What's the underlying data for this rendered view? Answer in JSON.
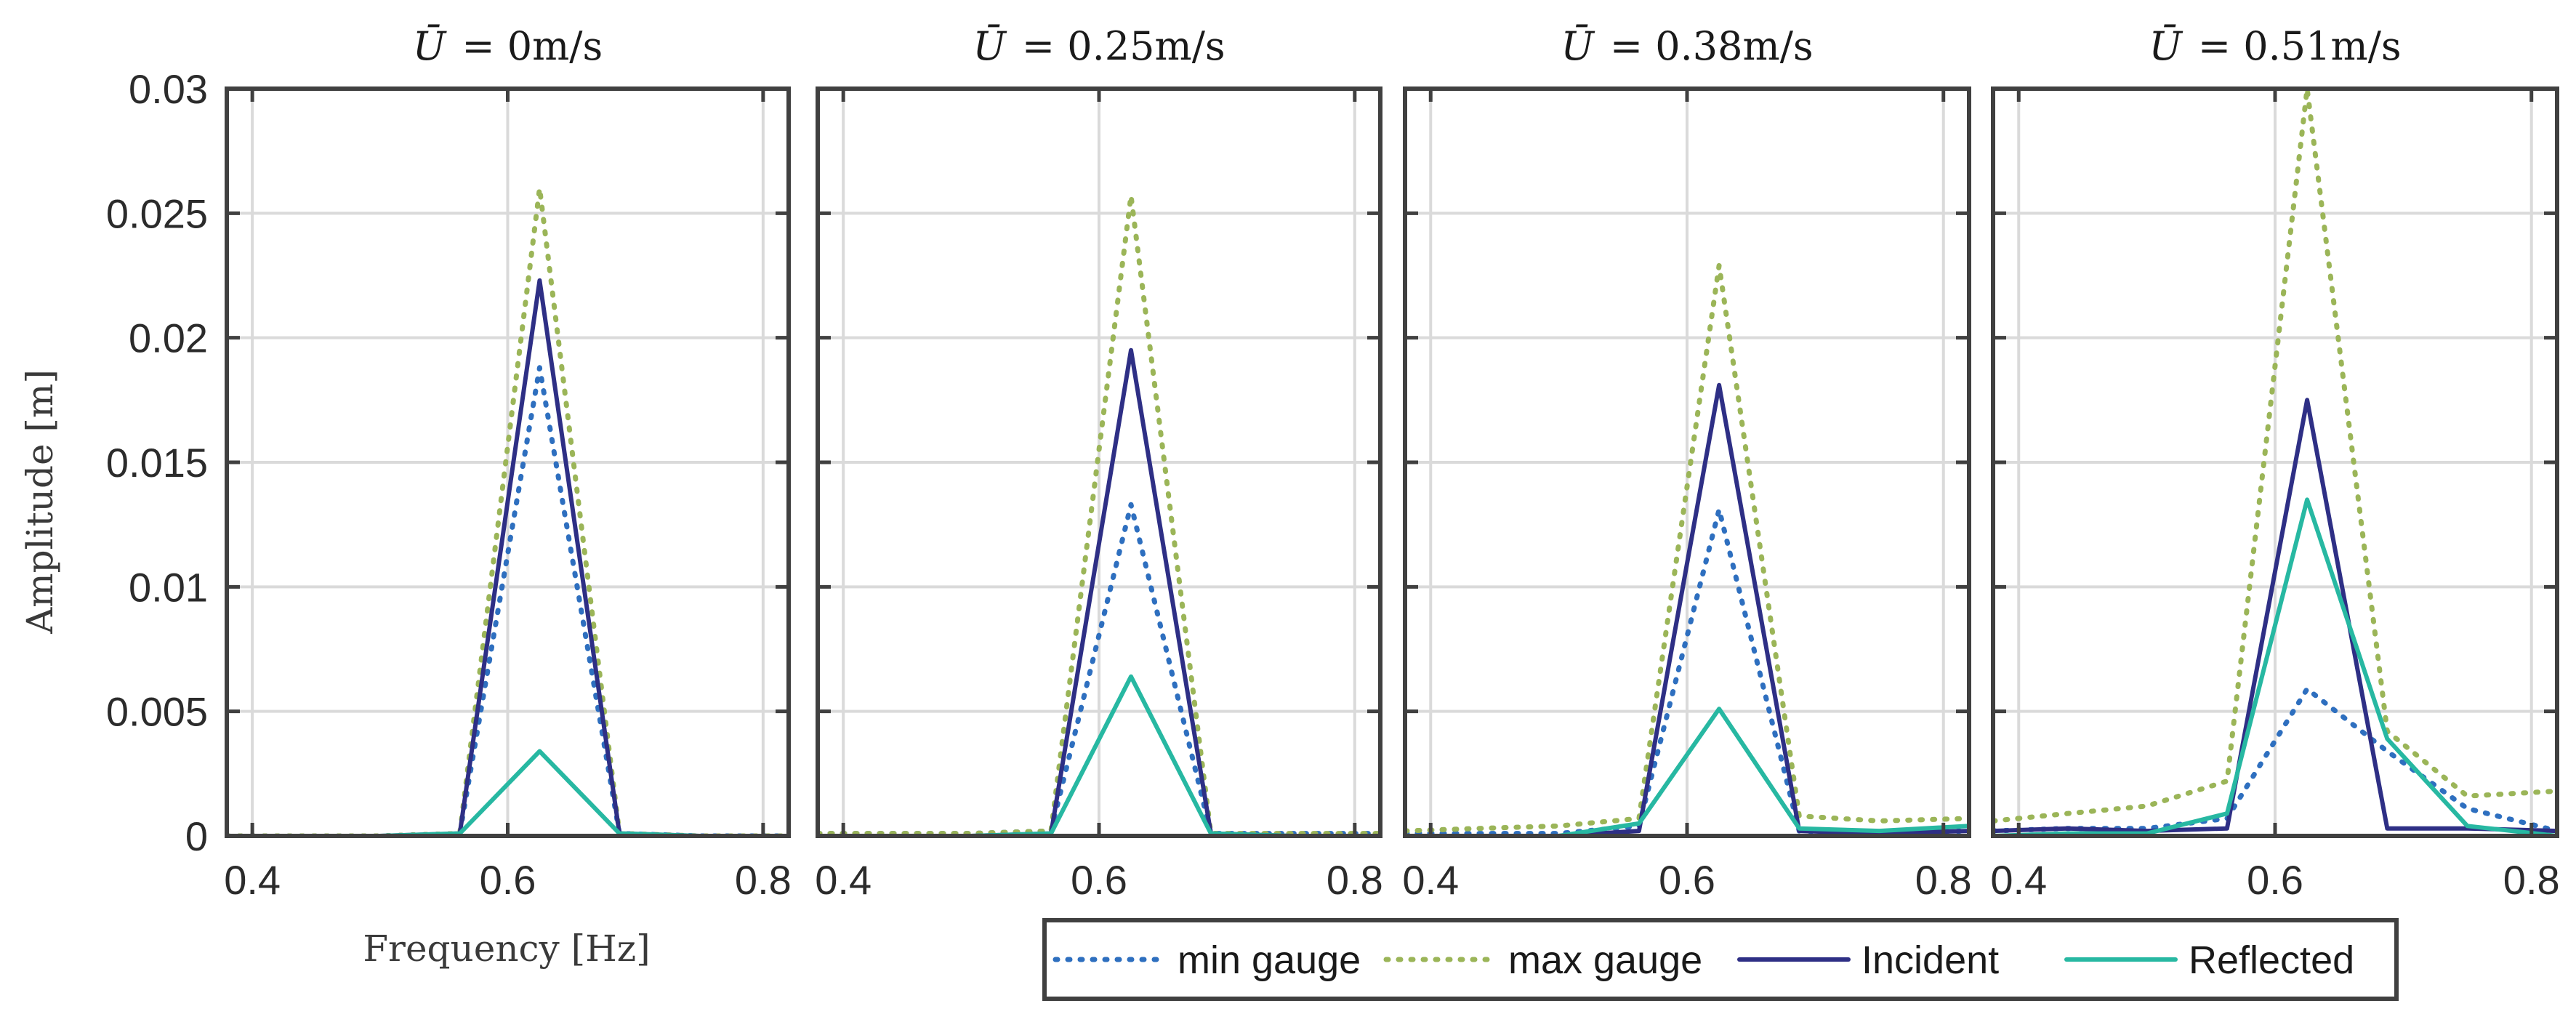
{
  "chart_data": {
    "type": "line",
    "xlabel": "Frequency [Hz]",
    "ylabel": "Amplitude [m]",
    "xlim": [
      0.38,
      0.82
    ],
    "ylim": [
      0,
      0.03
    ],
    "xticks": [
      0.4,
      0.6,
      0.8
    ],
    "xtick_labels": [
      "0.4",
      "0.6",
      "0.8"
    ],
    "yticks": [
      0,
      0.005,
      0.01,
      0.015,
      0.02,
      0.025,
      0.03
    ],
    "ytick_labels": [
      "0",
      "0.005",
      "0.01",
      "0.015",
      "0.02",
      "0.025",
      "0.03"
    ],
    "grid": true,
    "legend_position": "bottom-center",
    "series_styles": [
      {
        "name": "min gauge",
        "color": "#2e6fbf",
        "style": "dotted"
      },
      {
        "name": "max gauge",
        "color": "#9bb558",
        "style": "dotted"
      },
      {
        "name": "Incident",
        "color": "#2e2f85",
        "style": "solid"
      },
      {
        "name": "Reflected",
        "color": "#27b8a2",
        "style": "solid"
      }
    ],
    "panels": [
      {
        "title_var": "Ū",
        "title_value": "= 0m/s",
        "x": [
          0.38,
          0.438,
          0.5,
          0.5625,
          0.625,
          0.6875,
          0.75,
          0.82
        ],
        "series": [
          {
            "name": "min gauge",
            "values": [
              0,
              0,
              0,
              0.0001,
              0.0188,
              0.0001,
              0,
              0
            ]
          },
          {
            "name": "max gauge",
            "values": [
              0,
              0,
              0,
              0.0001,
              0.026,
              0.0001,
              0,
              0
            ]
          },
          {
            "name": "Incident",
            "values": [
              0,
              0,
              0,
              0.0001,
              0.0223,
              0.0001,
              0,
              0
            ]
          },
          {
            "name": "Reflected",
            "values": [
              0,
              0,
              0,
              0.0001,
              0.0034,
              0.0001,
              0,
              0
            ]
          }
        ]
      },
      {
        "title_var": "Ū",
        "title_value": "= 0.25m/s",
        "x": [
          0.38,
          0.438,
          0.5,
          0.5625,
          0.625,
          0.6875,
          0.75,
          0.82
        ],
        "series": [
          {
            "name": "min gauge",
            "values": [
              0.0001,
              0.0001,
              0.0001,
              0.0002,
              0.0133,
              0.0001,
              0.0001,
              0.0001
            ]
          },
          {
            "name": "max gauge",
            "values": [
              0.0001,
              0.0001,
              0.0001,
              0.0002,
              0.0257,
              0.0001,
              0.0001,
              0.0001
            ]
          },
          {
            "name": "Incident",
            "values": [
              0,
              0,
              0,
              0.0001,
              0.0195,
              0.0001,
              0,
              0
            ]
          },
          {
            "name": "Reflected",
            "values": [
              0,
              0,
              0,
              0.0001,
              0.0064,
              0.0001,
              0,
              0
            ]
          }
        ]
      },
      {
        "title_var": "Ū",
        "title_value": "= 0.38m/s",
        "x": [
          0.38,
          0.438,
          0.5,
          0.5625,
          0.625,
          0.6875,
          0.75,
          0.82
        ],
        "series": [
          {
            "name": "min gauge",
            "values": [
              0.0001,
              0.0001,
              0.0001,
              0.0004,
              0.0131,
              0.0002,
              0.0001,
              0.0002
            ]
          },
          {
            "name": "max gauge",
            "values": [
              0.0002,
              0.0003,
              0.0004,
              0.0007,
              0.0229,
              0.0008,
              0.0006,
              0.0007
            ]
          },
          {
            "name": "Incident",
            "values": [
              0,
              0,
              0,
              0.0002,
              0.0181,
              0.0002,
              0.0001,
              0.0002
            ]
          },
          {
            "name": "Reflected",
            "values": [
              0,
              0,
              0,
              0.0005,
              0.0051,
              0.0003,
              0.0002,
              0.0004
            ]
          }
        ]
      },
      {
        "title_var": "Ū",
        "title_value": "= 0.51m/s",
        "x": [
          0.38,
          0.438,
          0.5,
          0.5625,
          0.625,
          0.6875,
          0.75,
          0.82
        ],
        "series": [
          {
            "name": "min gauge",
            "values": [
              0.0002,
              0.0003,
              0.0003,
              0.0007,
              0.0059,
              0.0034,
              0.0011,
              0.0002
            ]
          },
          {
            "name": "max gauge",
            "values": [
              0.0006,
              0.0009,
              0.0012,
              0.0022,
              0.03,
              0.0042,
              0.0016,
              0.0018
            ]
          },
          {
            "name": "Incident",
            "values": [
              0.0002,
              0.0003,
              0.0002,
              0.0003,
              0.0175,
              0.0003,
              0.0003,
              0.0002
            ]
          },
          {
            "name": "Reflected",
            "values": [
              0,
              0.0001,
              0.0001,
              0.0009,
              0.0135,
              0.0039,
              0.0004,
              0
            ]
          }
        ]
      }
    ]
  }
}
